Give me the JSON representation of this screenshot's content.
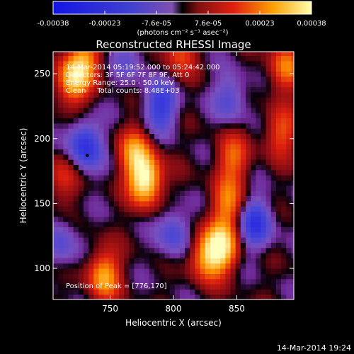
{
  "colorbar": {
    "ticks": [
      "-0.00038",
      "-0.00023",
      "-7.6e-05",
      "7.6e-05",
      "0.00023",
      "0.00038"
    ],
    "unit_label": "(photons cm⁻² s⁻¹ asec⁻²)",
    "range": [
      -0.00038,
      0.00038
    ]
  },
  "chart_data": {
    "type": "heatmap",
    "title": "Reconstructed RHESSI Image",
    "xlabel": "Heliocentric X (arcsec)",
    "ylabel": "Heliocentric Y (arcsec)",
    "xlim": [
      705,
      895
    ],
    "ylim": [
      76,
      267
    ],
    "x_ticks": [
      750,
      800,
      850
    ],
    "y_ticks": [
      100,
      150,
      200,
      250
    ],
    "annotations": [
      "14-Mar-2014 05:19:52.000 to 05:24:42.000",
      "Detectors: 3F 5F 6F 7F 8F 9F, Att 0",
      "Energy Range: 25.0 - 50.0 keV",
      "Clean     Total counts: 8.48E+03"
    ],
    "peak_label": "Position of Peak = [776,170]",
    "marker": {
      "x": 732,
      "y": 187
    },
    "blobs": [
      {
        "x": 778,
        "y": 168,
        "amp": 1.0
      },
      {
        "x": 770,
        "y": 190,
        "amp": 0.6
      },
      {
        "x": 838,
        "y": 116,
        "amp": 0.85
      },
      {
        "x": 825,
        "y": 110,
        "amp": 0.6
      },
      {
        "x": 843,
        "y": 150,
        "amp": 0.55
      },
      {
        "x": 847,
        "y": 185,
        "amp": 0.5
      },
      {
        "x": 745,
        "y": 95,
        "amp": 0.7
      },
      {
        "x": 720,
        "y": 245,
        "amp": 0.75
      },
      {
        "x": 730,
        "y": 262,
        "amp": 0.55
      },
      {
        "x": 888,
        "y": 255,
        "amp": 0.55
      },
      {
        "x": 885,
        "y": 205,
        "amp": 0.45
      },
      {
        "x": 805,
        "y": 268,
        "amp": 0.45
      },
      {
        "x": 712,
        "y": 170,
        "amp": 0.35
      },
      {
        "x": 730,
        "y": 195,
        "amp": -0.7
      },
      {
        "x": 790,
        "y": 225,
        "amp": -0.6
      },
      {
        "x": 865,
        "y": 135,
        "amp": -0.65
      },
      {
        "x": 800,
        "y": 128,
        "amp": -0.45
      },
      {
        "x": 765,
        "y": 262,
        "amp": -0.3
      },
      {
        "x": 845,
        "y": 232,
        "amp": -0.4
      },
      {
        "x": 712,
        "y": 120,
        "amp": -0.35
      }
    ]
  },
  "timestamp": "14-Mar-2014 19:24"
}
